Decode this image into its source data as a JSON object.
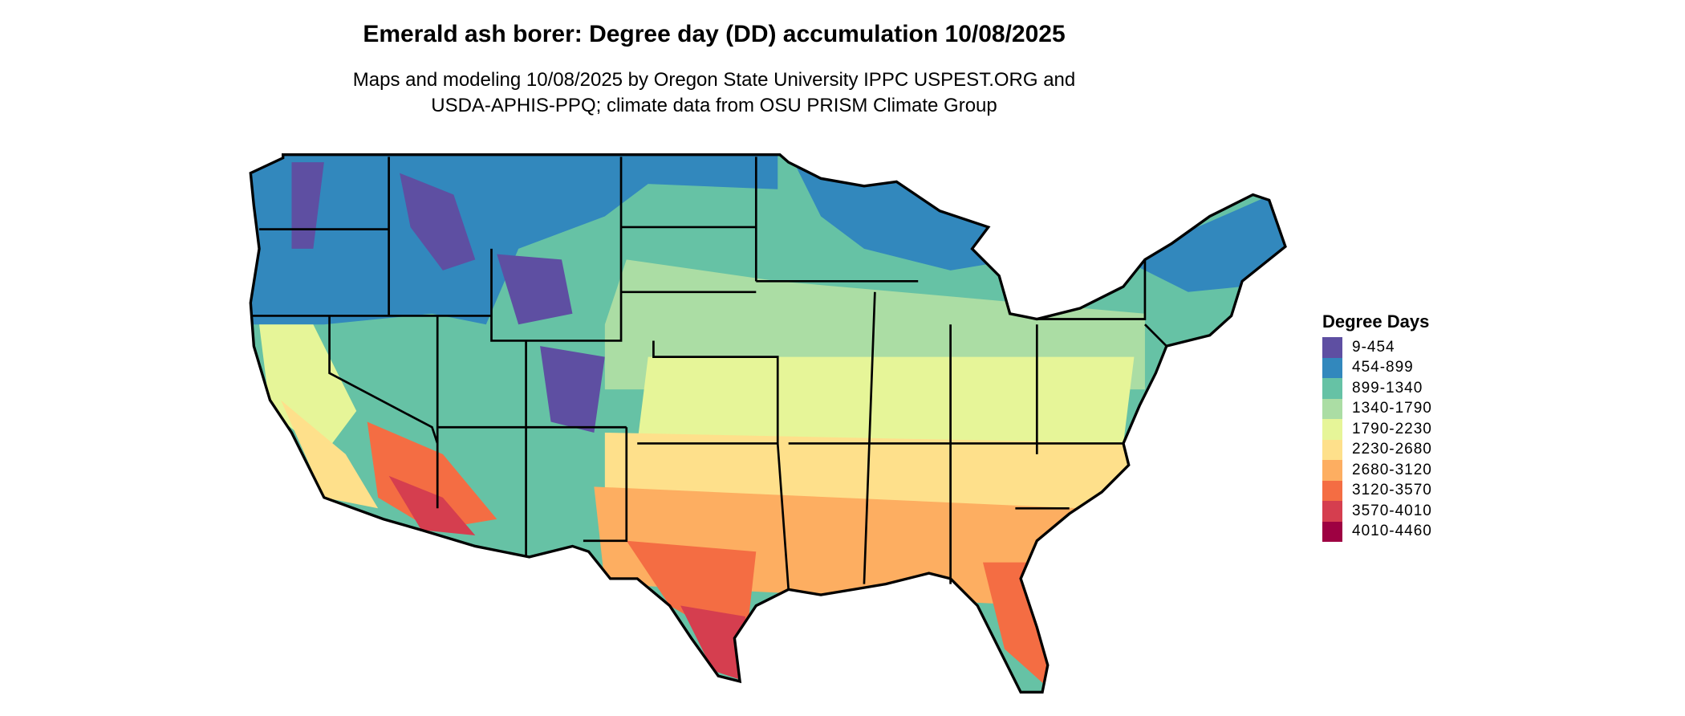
{
  "title": "Emerald ash borer: Degree day (DD) accumulation 10/08/2025",
  "subtitle_line1": "Maps and modeling 10/08/2025 by Oregon State University IPPC USPEST.ORG and",
  "subtitle_line2": "USDA-APHIS-PPQ; climate data from OSU PRISM Climate Group",
  "legend": {
    "title": "Degree Days",
    "items": [
      {
        "label": "9-454",
        "color": "#5E4FA2"
      },
      {
        "label": "454-899",
        "color": "#3288BD"
      },
      {
        "label": "899-1340",
        "color": "#66C2A5"
      },
      {
        "label": "1340-1790",
        "color": "#ABDDA4"
      },
      {
        "label": "1790-2230",
        "color": "#E6F598"
      },
      {
        "label": "2230-2680",
        "color": "#FEE08B"
      },
      {
        "label": "2680-3120",
        "color": "#FDAE61"
      },
      {
        "label": "3120-3570",
        "color": "#F46D43"
      },
      {
        "label": "3570-4010",
        "color": "#D53E4F"
      },
      {
        "label": "4010-4460",
        "color": "#9E0142"
      }
    ]
  },
  "map": {
    "region": "Contiguous United States",
    "border_color": "#000000"
  }
}
